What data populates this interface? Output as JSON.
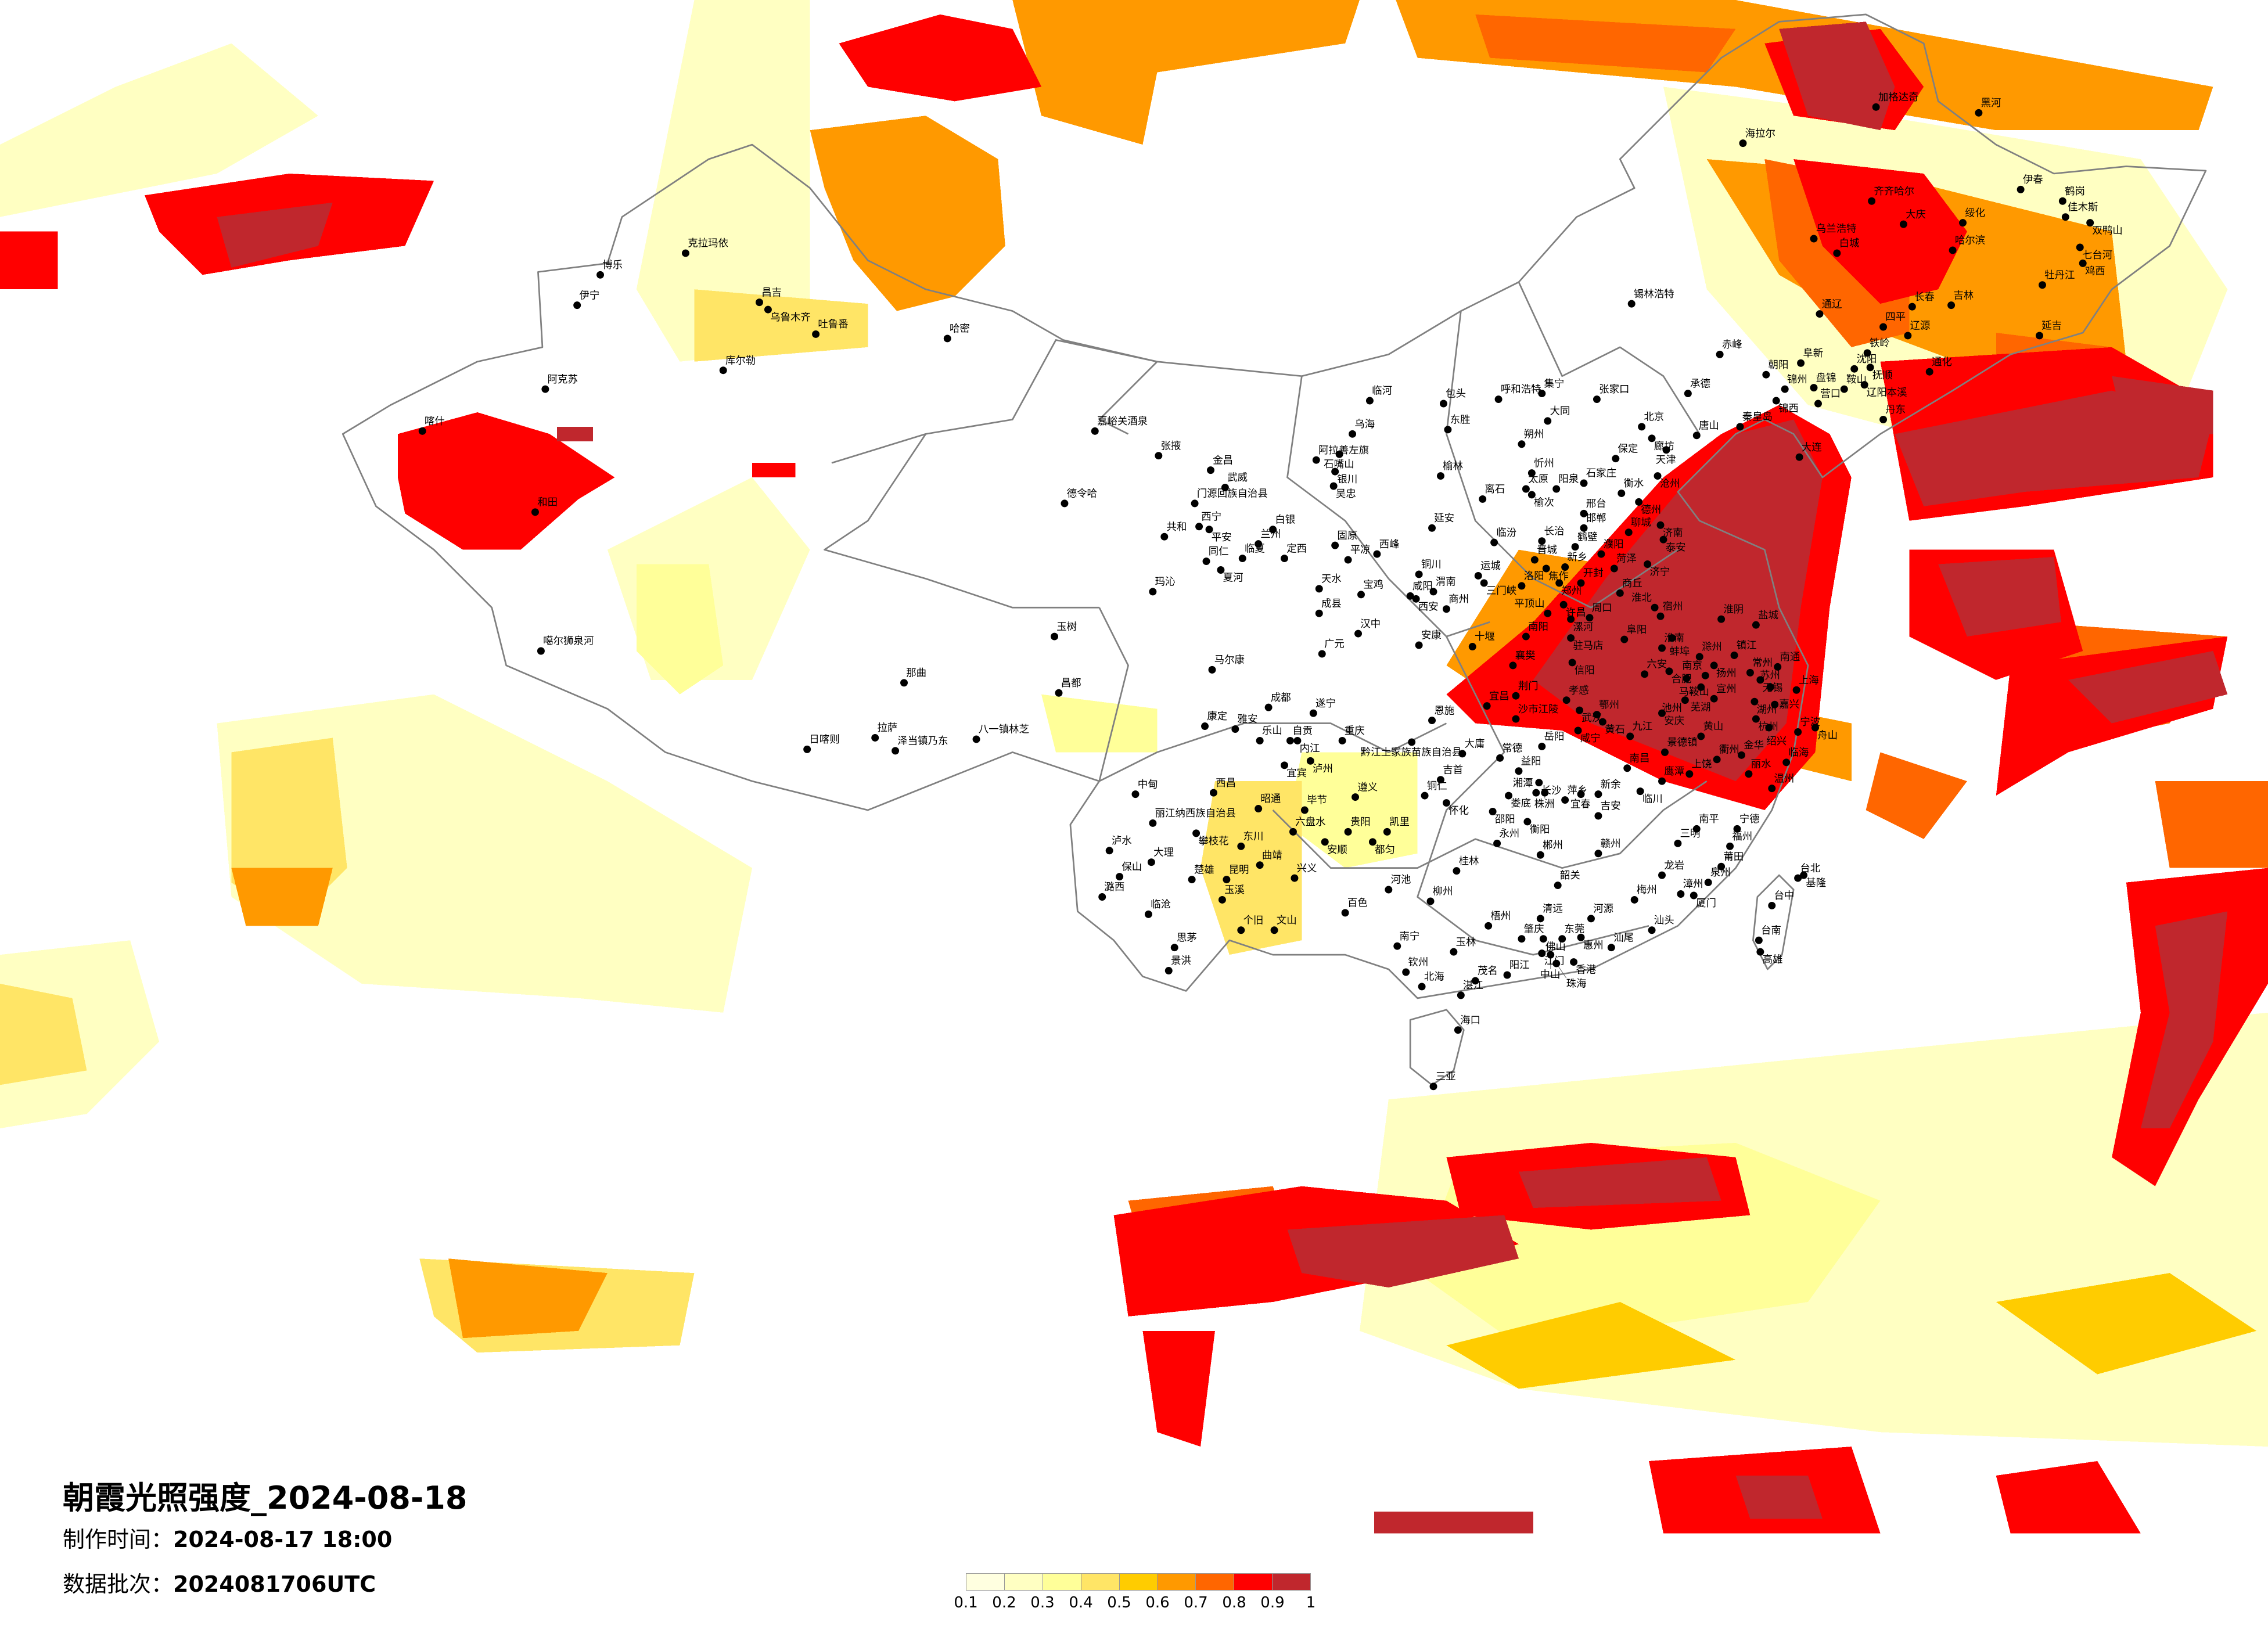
{
  "title": "朝霞光照强度_2024-08-18",
  "production_time": {
    "label": "制作时间：",
    "value": "2024-08-17 18:00"
  },
  "data_batch": {
    "label": "数据批次：",
    "value": "2024081706UTC"
  },
  "legend": {
    "labels": [
      "0.1",
      "0.2",
      "0.3",
      "0.4",
      "0.5",
      "0.6",
      "0.7",
      "0.8",
      "0.9",
      "1"
    ],
    "colors": [
      "#FFFFE0",
      "#FFFFC2",
      "#FFFF99",
      "#FFE566",
      "#FFCC00",
      "#FF9900",
      "#FF6600",
      "#FF0000",
      "#C0272D"
    ]
  },
  "cities": [
    "克拉玛依",
    "博乐",
    "伊宁",
    "昌吉",
    "乌鲁木齐",
    "吐鲁番",
    "哈密",
    "库尔勒",
    "阿克苏",
    "喀什",
    "和田",
    "噶尔狮泉河",
    "那曲",
    "玉树",
    "昌都",
    "拉萨",
    "泽当镇乃东",
    "日喀则",
    "八一镇林芝",
    "中甸",
    "嘉峪关酒泉",
    "德令哈",
    "张掖",
    "金昌",
    "武威",
    "门源回族自治县",
    "西宁",
    "平安",
    "共和",
    "白银",
    "兰州",
    "临夏",
    "同仁",
    "夏河",
    "定西",
    "固原",
    "平凉",
    "西峰",
    "天水",
    "宝鸡",
    "玛沁",
    "成县",
    "汉中",
    "广元",
    "马尔康",
    "临河",
    "包头",
    "呼和浩特",
    "集宁",
    "张家口",
    "乌海",
    "东胜",
    "阿拉善左旗",
    "石嘴山",
    "银川",
    "吴忠",
    "大同",
    "北京",
    "廊坊",
    "天津",
    "朔州",
    "保定",
    "忻州",
    "榆林",
    "沧州",
    "太原",
    "榆次",
    "阳泉",
    "石家庄",
    "衡水",
    "德州",
    "离石",
    "邢台",
    "邯郸",
    "延安",
    "济南",
    "聊城",
    "泰安",
    "临汾",
    "长治",
    "鹤壁",
    "濮阳",
    "晋城",
    "焦作",
    "新乡",
    "济宁",
    "菏泽",
    "铜川",
    "运城",
    "三门峡",
    "洛阳",
    "郑州",
    "开封",
    "商丘",
    "咸阳",
    "渭南",
    "西安",
    "商州",
    "许昌",
    "平顶山",
    "漯河",
    "周口",
    "宿州",
    "淮北",
    "安康",
    "十堰",
    "南阳",
    "驻马店",
    "阜阳",
    "淮南",
    "蚌埠",
    "淮阴",
    "盐城",
    "襄樊",
    "信阳",
    "六安",
    "合肥",
    "滁州",
    "扬州",
    "镇江",
    "南京",
    "常州",
    "南通",
    "无锡",
    "苏州",
    "上海",
    "马鞍山",
    "芜湖",
    "宣州",
    "湖州",
    "嘉兴",
    "杭州",
    "绍兴",
    "宁波",
    "舟山",
    "荆门",
    "宜昌",
    "沙市江陵",
    "孝感",
    "武汉",
    "鄂州",
    "黄石",
    "咸宁",
    "安庆",
    "池州",
    "黄山",
    "九江",
    "景德镇",
    "衢州",
    "金华",
    "临海",
    "丽水",
    "温州",
    "上饶",
    "鹰潭",
    "南昌",
    "临川",
    "岳阳",
    "常德",
    "大庸",
    "益阳",
    "长沙",
    "湘潭",
    "株洲",
    "娄底",
    "萍乡",
    "宜春",
    "新余",
    "吉安",
    "邵阳",
    "衡阳",
    "永州",
    "郴州",
    "赣州",
    "南平",
    "三明",
    "宁德",
    "福州",
    "莆田",
    "泉州",
    "龙岩",
    "漳州",
    "厦门",
    "桂林",
    "韶关",
    "梅州",
    "台北",
    "基隆",
    "台中",
    "台南",
    "高雄",
    "清远",
    "河源",
    "梧州",
    "肇庆",
    "佛山",
    "东莞",
    "惠州",
    "汕头",
    "汕尾",
    "江门",
    "中山",
    "香港",
    "珠海",
    "阳江",
    "茂名",
    "湛江",
    "玉林",
    "成都",
    "遂宁",
    "康定",
    "雅安",
    "乐山",
    "自贡",
    "内江",
    "重庆",
    "宜宾",
    "泸州",
    "恩施",
    "黔江土家族苗族自治县",
    "吉首",
    "西昌",
    "昭通",
    "毕节",
    "遵义",
    "铜仁",
    "怀化",
    "丽江纳西族自治县",
    "攀枝花",
    "六盘水",
    "贵阳",
    "凯里",
    "都匀",
    "安顺",
    "东川",
    "泸水",
    "大理",
    "保山",
    "楚雄",
    "昆明",
    "曲靖",
    "兴义",
    "潞西",
    "玉溪",
    "临沧",
    "河池",
    "柳州",
    "百色",
    "个旧",
    "文山",
    "思茅",
    "景洪",
    "南宁",
    "钦州",
    "北海",
    "海口",
    "三亚",
    "加格达奇",
    "黑河",
    "海拉尔",
    "伊春",
    "齐齐哈尔",
    "鹤岗",
    "大庆",
    "绥化",
    "佳木斯",
    "双鸭山",
    "乌兰浩特",
    "白城",
    "哈尔滨",
    "七台河",
    "鸡西",
    "牡丹江",
    "锡林浩特",
    "长春",
    "吉林",
    "通辽",
    "四平",
    "辽源",
    "延吉",
    "赤峰",
    "铁岭",
    "阜新",
    "沈阳",
    "抚顺",
    "朝阳",
    "通化",
    "辽阳本溪",
    "鞍山",
    "盘锦",
    "锦州",
    "锦西",
    "营口",
    "承德",
    "丹东",
    "秦皇岛",
    "唐山",
    "大连"
  ]
}
